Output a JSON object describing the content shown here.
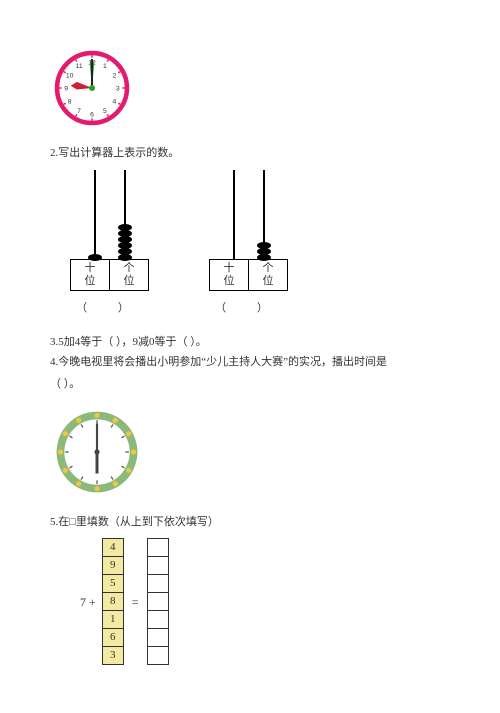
{
  "clock1": {
    "face_color": "#e31b6d",
    "center_color": "#2aa02a",
    "hour_hand_color": "#d02030",
    "hour_hand_angle": -15,
    "numbers": [
      "12",
      "1",
      "2",
      "3",
      "4",
      "5",
      "6",
      "7",
      "8",
      "9",
      "10",
      "11"
    ]
  },
  "q2": {
    "title": "2.写出计算器上表示的数。",
    "abacus": [
      {
        "rods": [
          {
            "beads": 1,
            "color": "#000000"
          },
          {
            "beads": 6,
            "color": "#000000"
          }
        ],
        "labels": [
          "十位",
          "个位"
        ],
        "paren": "（    ）"
      },
      {
        "rods": [
          {
            "beads": 0,
            "color": "#000000"
          },
          {
            "beads": 3,
            "color": "#000000"
          }
        ],
        "labels": [
          "十位",
          "个位"
        ],
        "paren": "（    ）"
      }
    ]
  },
  "q3": {
    "text": "3.5加4等于（    ），9减0等于（    ）。"
  },
  "q4": {
    "line1": "4.今晚电视里将会播出小明参加“少儿主持人大赛”的实况，播出时间是",
    "line2": "（      ）。"
  },
  "clock2": {
    "ring_outer": "#8ab97a",
    "ring_dots": "#f5c542",
    "face": "#ffffff",
    "hand_color": "#444444",
    "minute_angle": 0,
    "hour_angle": 180
  },
  "q5": {
    "title": "5.在□里填数（从上到下依次填写）",
    "prefix": "7 +",
    "left_col": {
      "fill": "#f4e9a0",
      "values": [
        "4",
        "9",
        "5",
        "8",
        "1",
        "6",
        "3"
      ]
    },
    "right_col": {
      "count": 7,
      "fill": "#ffffff"
    },
    "eq": "="
  }
}
